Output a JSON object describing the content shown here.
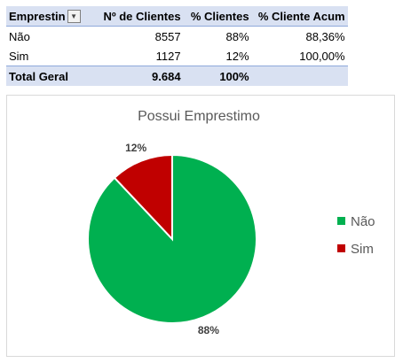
{
  "table": {
    "headers": [
      "Emprestimo",
      "Nº de Clientes",
      "% Clientes",
      "% Cliente Acum"
    ],
    "header_visible": "Emprestin",
    "rows": [
      {
        "label": "Não",
        "count": "8557",
        "pct": "88%",
        "acum": "88,36%"
      },
      {
        "label": "Sim",
        "count": "1127",
        "pct": "12%",
        "acum": "100,00%"
      }
    ],
    "total": {
      "label": "Total Geral",
      "count": "9.684",
      "pct": "100%"
    }
  },
  "chart_data": {
    "type": "pie",
    "title": "Possui Emprestimo",
    "categories": [
      "Não",
      "Sim"
    ],
    "values": [
      88,
      12
    ],
    "data_labels": [
      "88%",
      "12%"
    ],
    "colors": [
      "#00b050",
      "#c00000"
    ],
    "legend": "right"
  }
}
